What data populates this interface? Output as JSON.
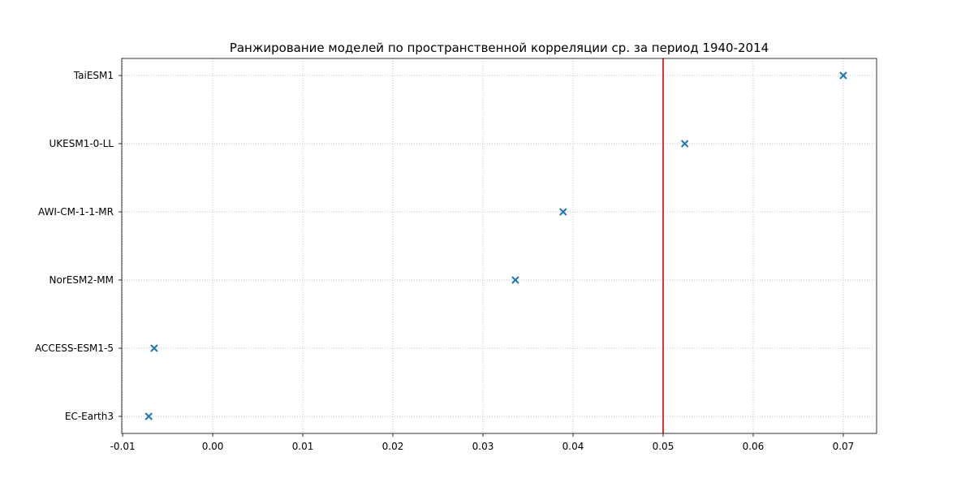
{
  "chart_data": {
    "type": "scatter",
    "title": "Ранжирование моделей по пространственной корреляции ср. за период 1940-2014",
    "xlabel": "",
    "ylabel": "",
    "xlim": [
      -0.0101,
      0.0737
    ],
    "x_ticks": [
      -0.01,
      0.0,
      0.01,
      0.02,
      0.03,
      0.04,
      0.05,
      0.06,
      0.07
    ],
    "x_tick_labels": [
      "-0.01",
      "0.00",
      "0.01",
      "0.02",
      "0.03",
      "0.04",
      "0.05",
      "0.06",
      "0.07"
    ],
    "categories": [
      "EC-Earth3",
      "ACCESS-ESM1-5",
      "NorESM2-MM",
      "AWI-CM-1-1-MR",
      "UKESM1-0-LL",
      "TaiESM1"
    ],
    "values": [
      -0.0071,
      -0.0065,
      0.0336,
      0.0389,
      0.0524,
      0.07
    ],
    "marker": "x",
    "marker_color": "#1f77b4",
    "threshold": {
      "value": 0.05,
      "color": "#e41a1c"
    },
    "grid": true,
    "grid_style": "dotted",
    "legend": "none"
  }
}
